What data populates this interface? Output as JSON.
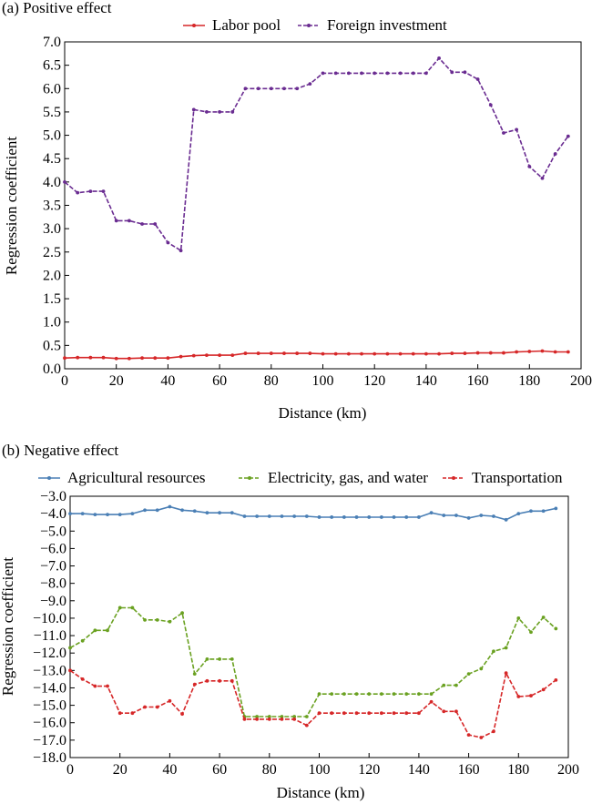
{
  "chart_data": [
    {
      "type": "line",
      "title": "(a) Positive effect",
      "xlabel": "Distance (km)",
      "ylabel": "Regression coefficient",
      "xlim": [
        0,
        200
      ],
      "ylim": [
        0,
        7
      ],
      "xticks": [
        0,
        20,
        40,
        60,
        80,
        100,
        120,
        140,
        160,
        180,
        200
      ],
      "yticks": [
        0,
        0.5,
        1,
        1.5,
        2,
        2.5,
        3,
        3.5,
        4,
        4.5,
        5,
        5.5,
        6,
        6.5,
        7
      ],
      "ytick_labels": [
        "0.0",
        "0.5",
        "1.0",
        "1.5",
        "2.0",
        "2.5",
        "3.0",
        "3.5",
        "4.0",
        "4.5",
        "5.0",
        "5.5",
        "6.0",
        "6.5",
        "7.0"
      ],
      "legend": "top",
      "x": [
        0,
        5,
        10,
        15,
        20,
        25,
        30,
        35,
        40,
        45,
        50,
        55,
        60,
        65,
        70,
        75,
        80,
        85,
        90,
        95,
        100,
        105,
        110,
        115,
        120,
        125,
        130,
        135,
        140,
        145,
        150,
        155,
        160,
        165,
        170,
        175,
        180,
        185,
        190,
        195
      ],
      "series": [
        {
          "name": "Labor pool",
          "color": "#d62728",
          "dashed": false,
          "values": [
            0.23,
            0.24,
            0.24,
            0.24,
            0.22,
            0.22,
            0.23,
            0.23,
            0.23,
            0.26,
            0.28,
            0.29,
            0.29,
            0.29,
            0.33,
            0.33,
            0.33,
            0.33,
            0.33,
            0.33,
            0.32,
            0.32,
            0.32,
            0.32,
            0.32,
            0.32,
            0.32,
            0.32,
            0.32,
            0.32,
            0.33,
            0.33,
            0.34,
            0.34,
            0.34,
            0.36,
            0.37,
            0.38,
            0.36,
            0.36
          ]
        },
        {
          "name": "Foreign investment",
          "color": "#6a2c91",
          "dashed": true,
          "values": [
            4.0,
            3.77,
            3.8,
            3.8,
            3.17,
            3.17,
            3.1,
            3.1,
            2.7,
            2.53,
            5.55,
            5.5,
            5.5,
            5.5,
            6.0,
            6.0,
            6.0,
            6.0,
            6.0,
            6.1,
            6.33,
            6.33,
            6.33,
            6.33,
            6.33,
            6.33,
            6.33,
            6.33,
            6.33,
            6.65,
            6.35,
            6.35,
            6.2,
            5.65,
            5.05,
            5.12,
            4.33,
            4.08,
            4.6,
            4.98
          ]
        }
      ]
    },
    {
      "type": "line",
      "title": "(b) Negative effect",
      "xlabel": "Distance (km)",
      "ylabel": "Regression coefficient",
      "xlim": [
        0,
        200
      ],
      "ylim": [
        -18,
        -3
      ],
      "xticks": [
        0,
        20,
        40,
        60,
        80,
        100,
        120,
        140,
        160,
        180,
        200
      ],
      "yticks": [
        -18,
        -17,
        -16,
        -15,
        -14,
        -13,
        -12,
        -11,
        -10,
        -9,
        -8,
        -7,
        -6,
        -5,
        -4,
        -3
      ],
      "ytick_labels": [
        "−18.0",
        "−17.0",
        "−16.0",
        "−15.0",
        "−14.0",
        "−13.0",
        "−12.0",
        "−11.0",
        "−10.0",
        "−9.0",
        "−8.0",
        "−7.0",
        "−6.0",
        "−5.0",
        "−4.0",
        "−3.0"
      ],
      "legend": "top",
      "x": [
        0,
        5,
        10,
        15,
        20,
        25,
        30,
        35,
        40,
        45,
        50,
        55,
        60,
        65,
        70,
        75,
        80,
        85,
        90,
        95,
        100,
        105,
        110,
        115,
        120,
        125,
        130,
        135,
        140,
        145,
        150,
        155,
        160,
        165,
        170,
        175,
        180,
        185,
        190,
        195
      ],
      "series": [
        {
          "name": "Agricultural resources",
          "color": "#4a7fb5",
          "dashed": false,
          "values": [
            -4.0,
            -4.0,
            -4.05,
            -4.05,
            -4.05,
            -4.0,
            -3.8,
            -3.8,
            -3.6,
            -3.8,
            -3.85,
            -3.95,
            -3.95,
            -3.95,
            -4.15,
            -4.15,
            -4.15,
            -4.15,
            -4.15,
            -4.15,
            -4.2,
            -4.2,
            -4.2,
            -4.2,
            -4.2,
            -4.2,
            -4.2,
            -4.2,
            -4.2,
            -3.95,
            -4.1,
            -4.1,
            -4.25,
            -4.1,
            -4.15,
            -4.35,
            -4.0,
            -3.85,
            -3.85,
            -3.7
          ]
        },
        {
          "name": "Electricity, gas, and water",
          "color": "#6aa121",
          "dashed": true,
          "values": [
            -11.7,
            -11.3,
            -10.7,
            -10.7,
            -9.4,
            -9.4,
            -10.1,
            -10.1,
            -10.2,
            -9.7,
            -13.2,
            -12.35,
            -12.35,
            -12.35,
            -15.65,
            -15.65,
            -15.65,
            -15.65,
            -15.65,
            -15.65,
            -14.35,
            -14.35,
            -14.35,
            -14.35,
            -14.35,
            -14.35,
            -14.35,
            -14.35,
            -14.35,
            -14.35,
            -13.85,
            -13.85,
            -13.2,
            -12.9,
            -11.9,
            -11.7,
            -10.0,
            -10.8,
            -9.95,
            -10.6
          ]
        },
        {
          "name": "Transportation",
          "color": "#d62728",
          "dashed": true,
          "values": [
            -13.0,
            -13.5,
            -13.9,
            -13.9,
            -15.45,
            -15.45,
            -15.1,
            -15.1,
            -14.75,
            -15.5,
            -13.8,
            -13.6,
            -13.6,
            -13.6,
            -15.8,
            -15.8,
            -15.8,
            -15.8,
            -15.8,
            -16.15,
            -15.45,
            -15.45,
            -15.45,
            -15.45,
            -15.45,
            -15.45,
            -15.45,
            -15.45,
            -15.45,
            -14.8,
            -15.35,
            -15.35,
            -16.7,
            -16.85,
            -16.5,
            -13.15,
            -14.5,
            -14.45,
            -14.1,
            -13.55
          ]
        }
      ]
    }
  ]
}
